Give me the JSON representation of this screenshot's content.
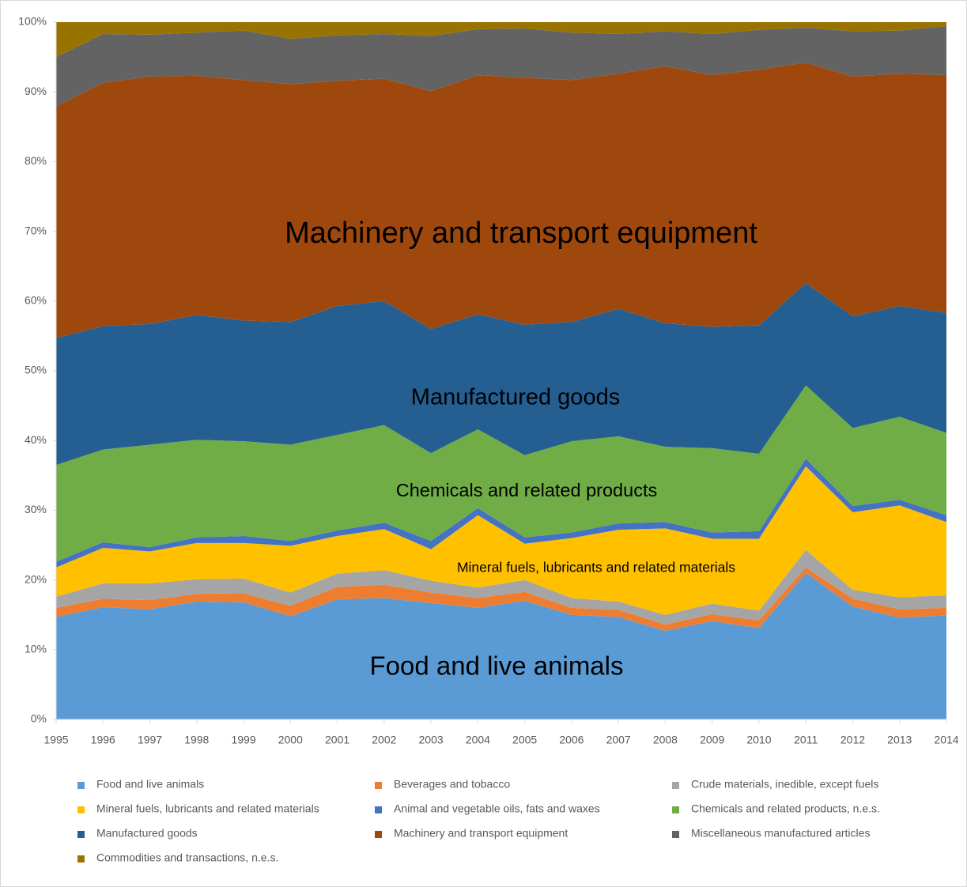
{
  "chart_data": {
    "type": "area",
    "stacked": true,
    "categories": [
      "1995",
      "1996",
      "1997",
      "1998",
      "1999",
      "2000",
      "2001",
      "2002",
      "2003",
      "2004",
      "2005",
      "2006",
      "2007",
      "2008",
      "2009",
      "2010",
      "2011",
      "2012",
      "2013",
      "2014"
    ],
    "ylim": [
      0,
      100
    ],
    "yticks": [
      {
        "value": 0,
        "label": "0%"
      },
      {
        "value": 10,
        "label": "10%"
      },
      {
        "value": 20,
        "label": "20%"
      },
      {
        "value": 30,
        "label": "30%"
      },
      {
        "value": 40,
        "label": "40%"
      },
      {
        "value": 50,
        "label": "50%"
      },
      {
        "value": 60,
        "label": "60%"
      },
      {
        "value": 70,
        "label": "70%"
      },
      {
        "value": 80,
        "label": "80%"
      },
      {
        "value": 90,
        "label": "90%"
      },
      {
        "value": 100,
        "label": "100%"
      }
    ],
    "grid": false,
    "legend": "bottom",
    "series": [
      {
        "name": "Food and live animals",
        "color": "#5b9bd5",
        "values": [
          14.7,
          16.1,
          15.8,
          16.9,
          16.8,
          14.8,
          17.2,
          17.4,
          16.7,
          16.0,
          17.0,
          15.0,
          14.7,
          12.7,
          14.1,
          13.1,
          21.0,
          16.2,
          14.6,
          14.9
        ]
      },
      {
        "name": "Beverages and tobacco",
        "color": "#ed7d31",
        "values": [
          1.3,
          1.2,
          1.3,
          1.1,
          1.3,
          1.5,
          1.8,
          1.9,
          1.5,
          1.4,
          1.3,
          1.0,
          1.0,
          0.9,
          1.0,
          1.1,
          0.8,
          1.1,
          1.2,
          1.1
        ]
      },
      {
        "name": "Crude materials, inedible, except fuels",
        "color": "#a5a5a5",
        "values": [
          1.6,
          2.2,
          2.4,
          2.1,
          2.1,
          1.9,
          1.9,
          2.1,
          1.7,
          1.5,
          1.7,
          1.4,
          1.2,
          1.4,
          1.5,
          1.4,
          2.5,
          1.3,
          1.7,
          1.8
        ]
      },
      {
        "name": "Mineral fuels, lubricants and related materials",
        "color": "#ffc000",
        "values": [
          4.2,
          5.1,
          4.6,
          5.2,
          5.1,
          6.7,
          5.4,
          5.9,
          4.5,
          10.4,
          5.2,
          8.6,
          10.3,
          12.4,
          9.3,
          10.3,
          12.0,
          11.1,
          13.2,
          10.5
        ]
      },
      {
        "name": "Animal and vegetable oils, fats and waxes",
        "color": "#4472c4",
        "values": [
          0.8,
          0.8,
          0.6,
          0.8,
          1.0,
          0.7,
          0.8,
          0.9,
          1.2,
          1.0,
          0.9,
          0.8,
          0.9,
          0.9,
          0.9,
          1.1,
          1.1,
          0.9,
          0.8,
          1.0
        ]
      },
      {
        "name": "Chemicals and related products, n.e.s.",
        "color": "#70ad47",
        "values": [
          13.9,
          13.3,
          14.7,
          14.0,
          13.6,
          13.8,
          13.7,
          14.0,
          12.6,
          11.3,
          11.8,
          13.1,
          12.5,
          10.8,
          12.1,
          11.1,
          10.5,
          11.2,
          11.9,
          11.8
        ]
      },
      {
        "name": "Manufactured goods",
        "color": "#255e91",
        "values": [
          18.2,
          17.7,
          17.3,
          17.9,
          17.3,
          17.6,
          18.5,
          17.8,
          17.8,
          16.5,
          18.7,
          17.1,
          18.3,
          17.7,
          17.4,
          18.4,
          14.7,
          16.0,
          15.9,
          17.2
        ]
      },
      {
        "name": "Machinery and transport equipment",
        "color": "#9e480e",
        "values": [
          33.2,
          34.9,
          35.5,
          34.3,
          34.5,
          34.1,
          32.3,
          31.9,
          34.1,
          34.3,
          35.4,
          34.7,
          33.7,
          36.9,
          36.1,
          36.7,
          31.6,
          34.4,
          33.3,
          34.1
        ]
      },
      {
        "name": "Miscellaneous manufactured articles",
        "color": "#636363",
        "values": [
          7.1,
          7.0,
          6.0,
          6.2,
          7.1,
          6.5,
          6.5,
          6.4,
          7.9,
          6.6,
          7.1,
          6.8,
          5.7,
          5.0,
          5.9,
          5.7,
          5.0,
          6.5,
          6.2,
          7.0
        ]
      },
      {
        "name": "Commodities and transactions, n.e.s.",
        "color": "#997300",
        "values": [
          5.0,
          1.7,
          1.8,
          1.5,
          1.2,
          2.4,
          1.9,
          1.7,
          2.0,
          1.0,
          0.9,
          1.5,
          1.7,
          1.3,
          1.7,
          1.1,
          0.8,
          1.3,
          1.2,
          0.6
        ]
      }
    ],
    "annotations": [
      "Machinery and transport equipment",
      "Manufactured goods",
      "Chemicals and related products",
      "Mineral fuels, lubricants and related materials",
      "Food and live animals"
    ]
  }
}
